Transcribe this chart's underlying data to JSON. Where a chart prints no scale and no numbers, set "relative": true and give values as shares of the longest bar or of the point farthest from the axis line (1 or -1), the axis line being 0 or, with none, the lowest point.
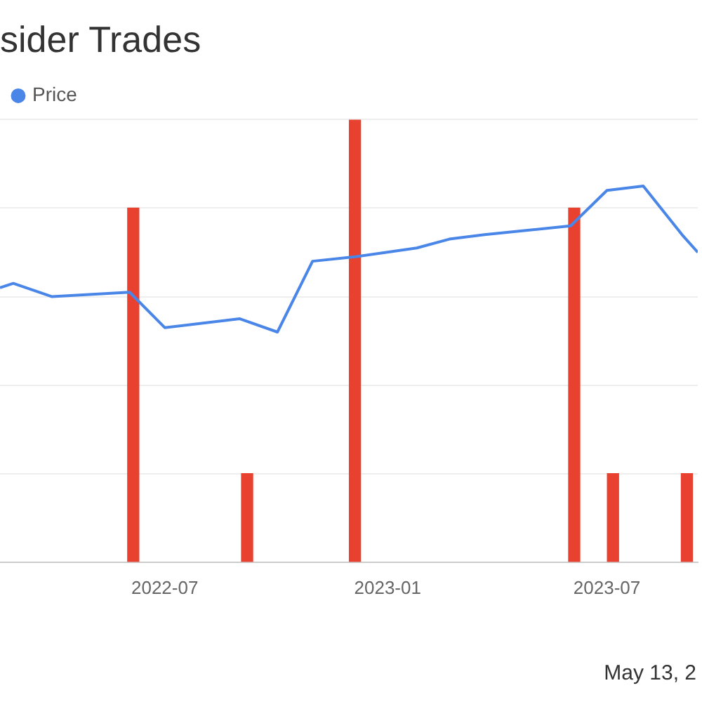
{
  "chart_data": {
    "type": "bar",
    "title": "sider Trades",
    "relative": true,
    "legend": "top left",
    "grid": "y",
    "xlim": [
      "2022-02-15",
      "2023-09-14"
    ],
    "xticks": [
      {
        "value": "2022-07-01",
        "label": "2022-07"
      },
      {
        "value": "2023-01-01",
        "label": "2023-01"
      },
      {
        "value": "2023-07-01",
        "label": "2023-07"
      }
    ],
    "annotations": [
      "May 13, 2"
    ],
    "series": [
      {
        "color": "#e8412f",
        "x": [
          "2022-06-05",
          "2022-09-07",
          "2022-12-05",
          "2023-06-04",
          "2023-07-06",
          "2023-09-05"
        ],
        "values": [
          0.8,
          0.2,
          1,
          0.8,
          0.2,
          0.2
        ]
      },
      {
        "type": "line",
        "name": "Price",
        "color": "#4a86e8",
        "x": [
          "2022-02-15",
          "2022-02-26",
          "2022-03-30",
          "2022-06-02",
          "2022-07-01",
          "2022-09-01",
          "2022-10-02",
          "2022-10-31",
          "2022-12-05",
          "2023-01-25",
          "2023-02-21",
          "2023-03-22",
          "2023-06-01",
          "2023-07-01",
          "2023-07-31",
          "2023-09-01",
          "2023-09-14"
        ],
        "values": [
          0.62,
          0.63,
          0.6,
          0.61,
          0.53,
          0.55,
          0.52,
          0.68,
          0.69,
          0.71,
          0.73,
          0.74,
          0.76,
          0.84,
          0.85,
          0.74,
          0.7
        ]
      }
    ]
  }
}
